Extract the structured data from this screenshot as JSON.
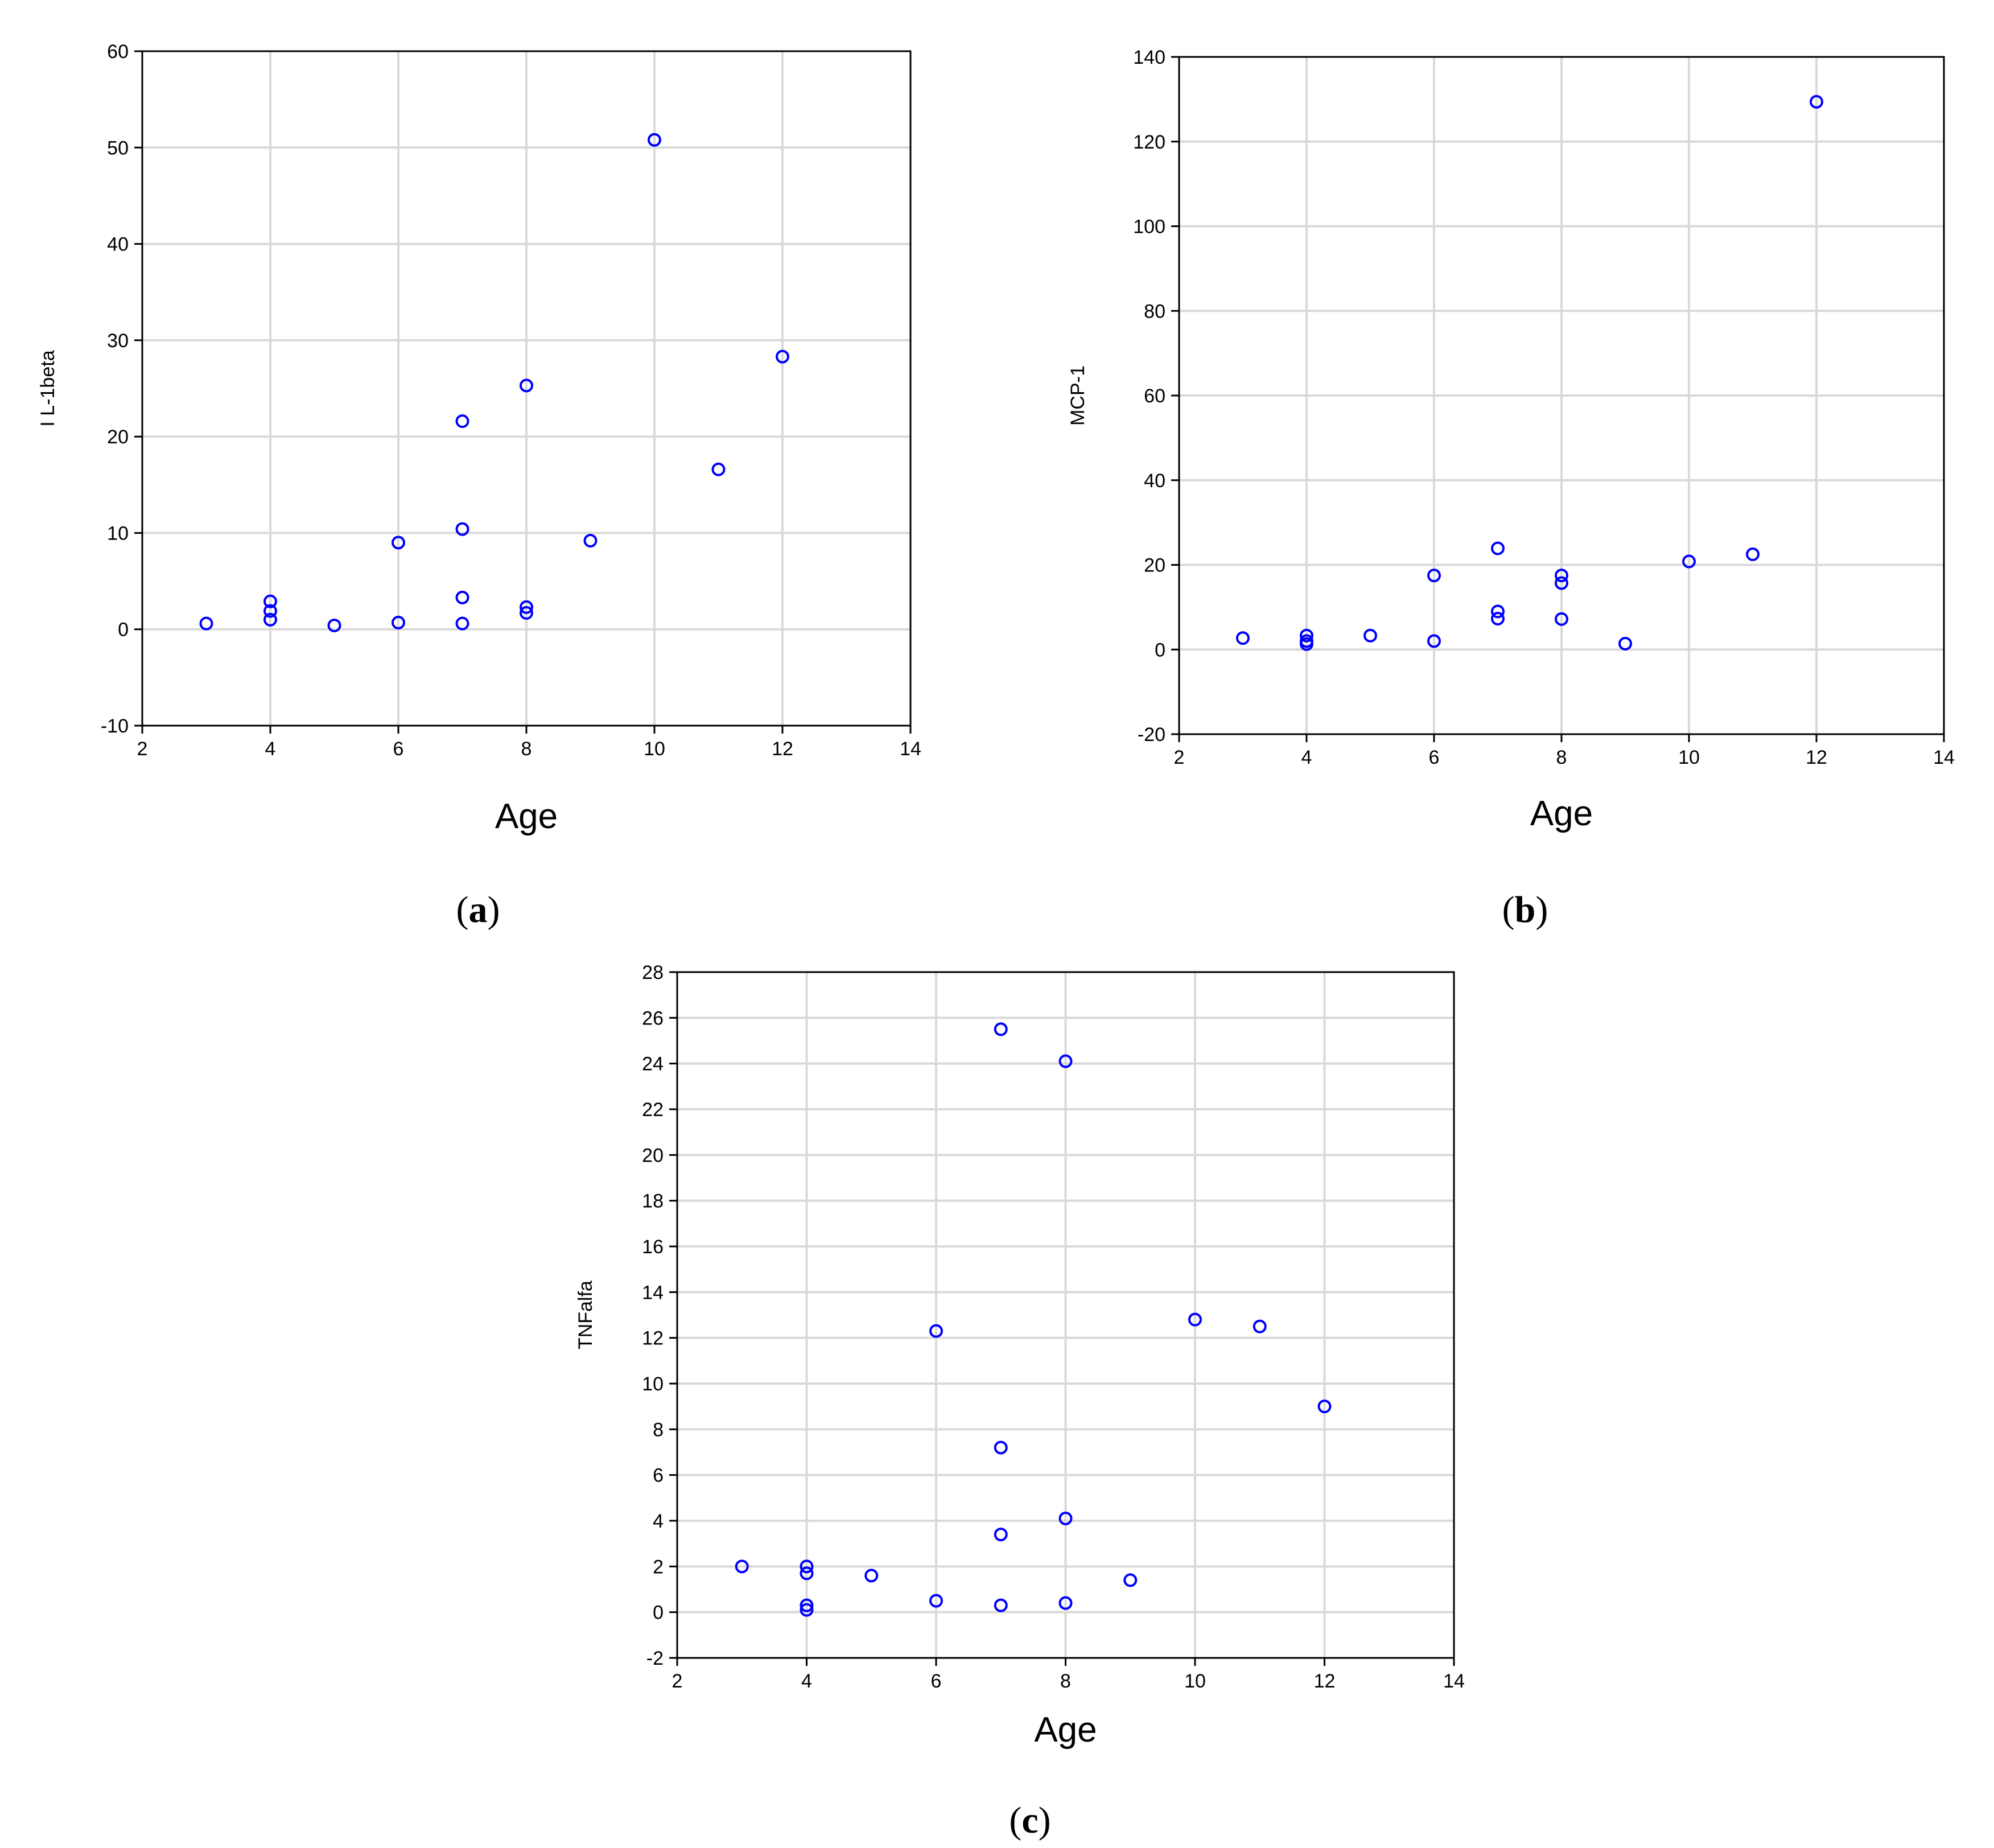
{
  "marker_color": "#0000ff",
  "grid_color": "#d9d9d9",
  "chart_data": [
    {
      "type": "scatter",
      "panel_label": "a",
      "xlabel": "Age",
      "ylabel": "I L-1beta",
      "xlim": [
        2,
        14
      ],
      "ylim": [
        -10,
        60
      ],
      "xticks": [
        2,
        4,
        6,
        8,
        10,
        12,
        14
      ],
      "yticks": [
        -10,
        0,
        10,
        20,
        30,
        40,
        50,
        60
      ],
      "grid": true,
      "points": [
        {
          "x": 3,
          "y": 0.6
        },
        {
          "x": 4,
          "y": 2.9
        },
        {
          "x": 4,
          "y": 1.9
        },
        {
          "x": 4,
          "y": 1.0
        },
        {
          "x": 5,
          "y": 0.4
        },
        {
          "x": 6,
          "y": 9.0
        },
        {
          "x": 6,
          "y": 0.7
        },
        {
          "x": 7,
          "y": 21.6
        },
        {
          "x": 7,
          "y": 10.4
        },
        {
          "x": 7,
          "y": 3.3
        },
        {
          "x": 7,
          "y": 0.6
        },
        {
          "x": 8,
          "y": 25.3
        },
        {
          "x": 8,
          "y": 2.3
        },
        {
          "x": 8,
          "y": 1.7
        },
        {
          "x": 9,
          "y": 9.2
        },
        {
          "x": 10,
          "y": 50.8
        },
        {
          "x": 11,
          "y": 16.6
        },
        {
          "x": 12,
          "y": 28.3
        }
      ]
    },
    {
      "type": "scatter",
      "panel_label": "b",
      "xlabel": "Age",
      "ylabel": "MCP-1",
      "xlim": [
        2,
        14
      ],
      "ylim": [
        -20,
        140
      ],
      "xticks": [
        2,
        4,
        6,
        8,
        10,
        12,
        14
      ],
      "yticks": [
        -20,
        0,
        20,
        40,
        60,
        80,
        100,
        120,
        140
      ],
      "grid": true,
      "points": [
        {
          "x": 3,
          "y": 2.7
        },
        {
          "x": 4,
          "y": 3.3
        },
        {
          "x": 4,
          "y": 2.0
        },
        {
          "x": 4,
          "y": 1.3
        },
        {
          "x": 5,
          "y": 3.3
        },
        {
          "x": 6,
          "y": 17.5
        },
        {
          "x": 6,
          "y": 2.0
        },
        {
          "x": 7,
          "y": 23.9
        },
        {
          "x": 7,
          "y": 9.0
        },
        {
          "x": 7,
          "y": 7.3
        },
        {
          "x": 8,
          "y": 17.5
        },
        {
          "x": 8,
          "y": 15.7
        },
        {
          "x": 8,
          "y": 7.2
        },
        {
          "x": 9,
          "y": 1.4
        },
        {
          "x": 10,
          "y": 20.8
        },
        {
          "x": 11,
          "y": 22.5
        },
        {
          "x": 12,
          "y": 129.4
        }
      ]
    },
    {
      "type": "scatter",
      "panel_label": "c",
      "xlabel": "Age",
      "ylabel": "TNFalfa",
      "xlim": [
        2,
        14
      ],
      "ylim": [
        -2,
        28
      ],
      "xticks": [
        2,
        4,
        6,
        8,
        10,
        12,
        14
      ],
      "yticks": [
        -2,
        0,
        2,
        4,
        6,
        8,
        10,
        12,
        14,
        16,
        18,
        20,
        22,
        24,
        26,
        28
      ],
      "grid": true,
      "points": [
        {
          "x": 3,
          "y": 2.0
        },
        {
          "x": 4,
          "y": 2.0
        },
        {
          "x": 4,
          "y": 1.7
        },
        {
          "x": 4,
          "y": 0.3
        },
        {
          "x": 4,
          "y": 0.1
        },
        {
          "x": 5,
          "y": 1.6
        },
        {
          "x": 6,
          "y": 12.3
        },
        {
          "x": 6,
          "y": 0.5
        },
        {
          "x": 7,
          "y": 25.5
        },
        {
          "x": 7,
          "y": 7.2
        },
        {
          "x": 7,
          "y": 3.4
        },
        {
          "x": 7,
          "y": 0.3
        },
        {
          "x": 8,
          "y": 24.1
        },
        {
          "x": 8,
          "y": 4.1
        },
        {
          "x": 8,
          "y": 0.4
        },
        {
          "x": 9,
          "y": 1.4
        },
        {
          "x": 10,
          "y": 12.8
        },
        {
          "x": 11,
          "y": 12.5
        },
        {
          "x": 12,
          "y": 9.0
        }
      ]
    }
  ]
}
